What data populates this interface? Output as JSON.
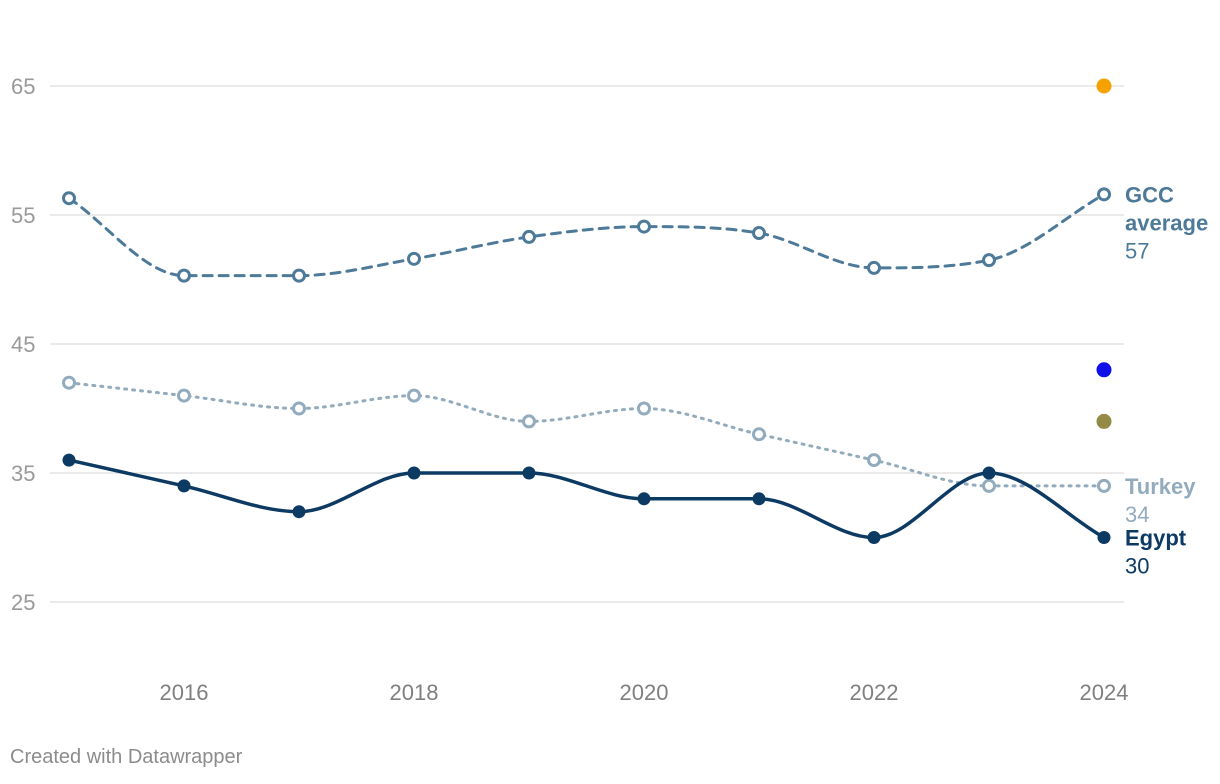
{
  "chart_data": {
    "type": "line",
    "title": "",
    "xlabel": "",
    "ylabel": "",
    "x": [
      2015,
      2016,
      2017,
      2018,
      2019,
      2020,
      2021,
      2022,
      2023,
      2024
    ],
    "xticks": [
      "2016",
      "2018",
      "2020",
      "2022",
      "2024"
    ],
    "yticks": [
      "25",
      "35",
      "45",
      "55",
      "65"
    ],
    "xlim": [
      2015,
      2024
    ],
    "ylim": [
      20,
      70
    ],
    "grid": true,
    "series": [
      {
        "name": "GCC average",
        "name_lines": [
          "GCC",
          "average"
        ],
        "end_label": "57",
        "color": "#4e7a99",
        "style": "dashed",
        "marker": "hollow",
        "values": [
          56.3,
          50.3,
          50.3,
          51.6,
          53.3,
          54.1,
          53.6,
          50.9,
          51.5,
          56.6
        ]
      },
      {
        "name": "Turkey",
        "name_lines": [
          "Turkey"
        ],
        "end_label": "34",
        "color": "#92abbd",
        "style": "dotted",
        "marker": "hollow",
        "values": [
          42,
          41,
          40,
          41,
          39,
          40,
          38,
          36,
          34,
          34
        ]
      },
      {
        "name": "Egypt",
        "name_lines": [
          "Egypt"
        ],
        "end_label": "30",
        "color": "#0d3a63",
        "style": "solid",
        "marker": "filled",
        "values": [
          36,
          34,
          32,
          35,
          35,
          33,
          33,
          30,
          35,
          30
        ]
      }
    ],
    "extra_points": [
      {
        "x": 2024,
        "y": 65,
        "color": "#f5a100"
      },
      {
        "x": 2024,
        "y": 43,
        "color": "#1010e8"
      },
      {
        "x": 2024,
        "y": 39,
        "color": "#948a45"
      }
    ]
  },
  "credit": "Created with Datawrapper"
}
